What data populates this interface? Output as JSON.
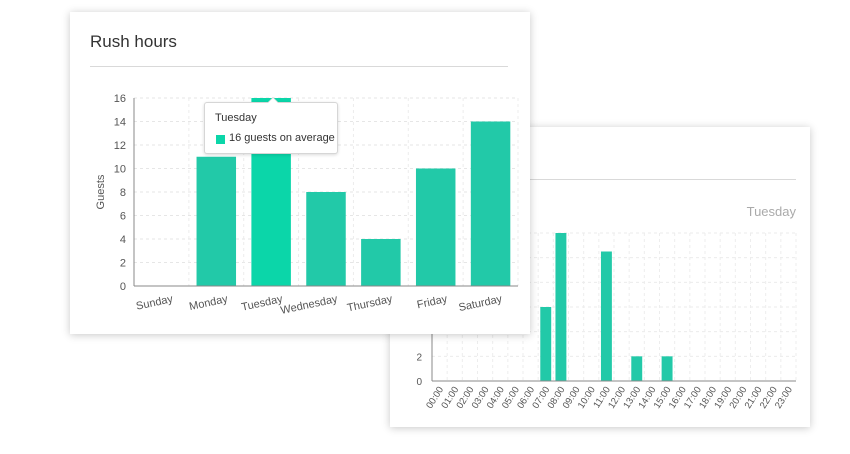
{
  "chart_data": [
    {
      "type": "bar",
      "title": "Rush hours",
      "ylabel": "Guests",
      "xlabel": "",
      "categories": [
        "Sunday",
        "Monday",
        "Tuesday",
        "Wednesday",
        "Thursday",
        "Friday",
        "Saturday"
      ],
      "values": [
        0,
        11,
        16,
        8,
        4,
        10,
        14
      ],
      "highlighted_category": "Tuesday",
      "ylim": [
        0,
        16
      ],
      "yticks": [
        0,
        2,
        4,
        6,
        8,
        10,
        12,
        14,
        16
      ],
      "grid": true,
      "colors": {
        "bar": "#22c9a8",
        "highlight": "#0bd6a9"
      },
      "tooltip": {
        "title": "Tuesday",
        "text": "16 guests on average"
      }
    },
    {
      "type": "bar",
      "subtitle": "Tuesday",
      "categories": [
        "00:00",
        "01:00",
        "02:00",
        "03:00",
        "04:00",
        "05:00",
        "06:00",
        "07:00",
        "08:00",
        "09:00",
        "10:00",
        "11:00",
        "12:00",
        "13:00",
        "14:00",
        "15:00",
        "16:00",
        "17:00",
        "18:00",
        "19:00",
        "20:00",
        "21:00",
        "22:00",
        "23:00"
      ],
      "values": [
        0,
        0,
        0,
        0,
        0,
        0,
        0,
        6,
        12,
        0,
        0,
        10.5,
        0,
        2,
        0,
        2,
        0,
        0,
        0,
        0,
        0,
        0,
        0,
        0
      ],
      "ylim": [
        0,
        12
      ],
      "yticks_visible": [
        0,
        2
      ],
      "grid": true,
      "colors": {
        "bar": "#22c9a8"
      }
    }
  ]
}
